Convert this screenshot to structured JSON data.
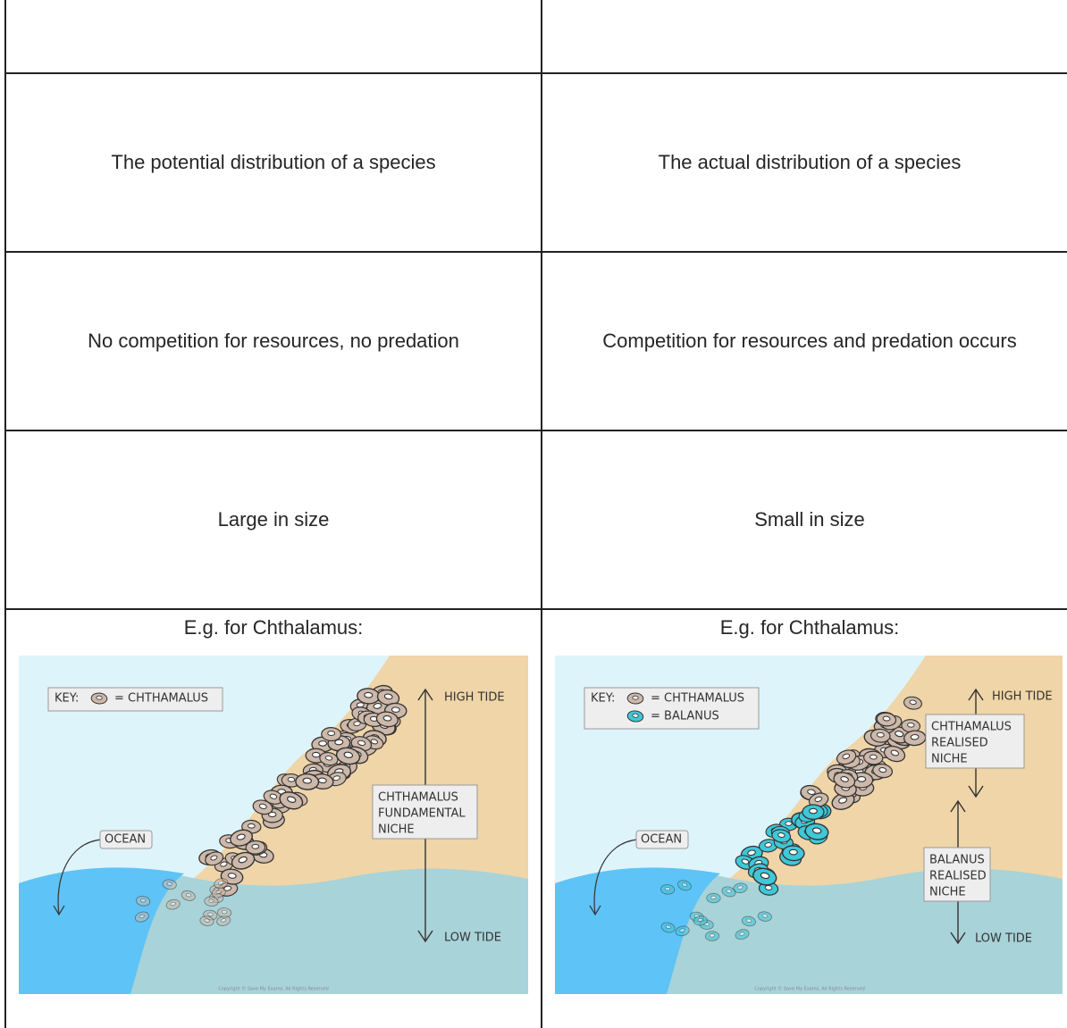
{
  "table": {
    "rows": [
      [
        "The potential distribution of a species",
        "The actual distribution of a species"
      ],
      [
        "No competition for resources, no predation",
        "Competition for resources and predation occurs"
      ],
      [
        "Large in size",
        "Small in size"
      ]
    ],
    "examples": [
      {
        "caption": "E.g. for Chthalamus:",
        "key_title": "KEY:",
        "key": [
          "= CHTHAMALUS"
        ],
        "ocean": "OCEAN",
        "high_tide": "HIGH TIDE",
        "low_tide": "LOW TIDE",
        "niches": [
          [
            "CHTHAMALUS",
            "FUNDAMENTAL",
            "NICHE"
          ]
        ],
        "copyright": "Copyright © Save My Exams. All Rights Reserved"
      },
      {
        "caption": "E.g. for Chthalamus:",
        "key_title": "KEY:",
        "key": [
          "= CHTHAMALUS",
          "= BALANUS"
        ],
        "ocean": "OCEAN",
        "high_tide": "HIGH TIDE",
        "low_tide": "LOW TIDE",
        "niches": [
          [
            "CHTHAMALUS",
            "REALISED",
            "NICHE"
          ],
          [
            "BALANUS",
            "REALISED",
            "NICHE"
          ]
        ],
        "copyright": "Copyright © Save My Exams. All Rights Reserved"
      }
    ]
  }
}
